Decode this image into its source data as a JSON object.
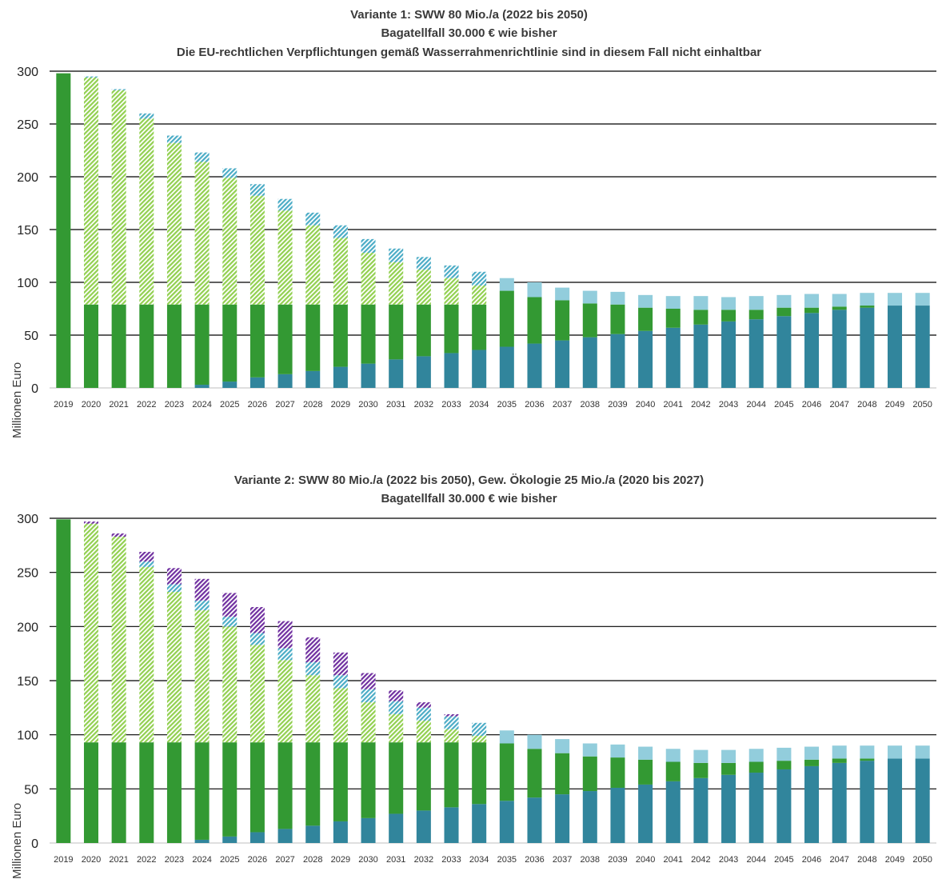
{
  "colors": {
    "basis": "#339933",
    "sww_hatch": "#92d050",
    "teal": "#31859c",
    "light_blue": "#92cddc",
    "light_blue_hatch": "#4bacc6",
    "purple_hatch": "#7030a0"
  },
  "chart_data": [
    {
      "type": "bar",
      "stacked": true,
      "title_lines": [
        "Variante 1: SWW  80 Mio./a (2022 bis 2050)",
        "Bagatellfall 30.000 € wie bisher",
        "Die EU-rechtlichen Verpflichtungen gemäß Wasserrahmenrichtlinie sind in diesem Fall nicht einhaltbar"
      ],
      "ylabel": "Millionen Euro",
      "xlabel": "",
      "ylim": [
        0,
        300
      ],
      "yticks": [
        0,
        50,
        100,
        150,
        200,
        250,
        300
      ],
      "grid": true,
      "categories": [
        "2019",
        "2020",
        "2021",
        "2022",
        "2023",
        "2024",
        "2025",
        "2026",
        "2027",
        "2028",
        "2029",
        "2030",
        "2031",
        "2032",
        "2033",
        "2034",
        "2035",
        "2036",
        "2037",
        "2038",
        "2039",
        "2040",
        "2041",
        "2042",
        "2043",
        "2044",
        "2045",
        "2046",
        "2047",
        "2048",
        "2049",
        "2050"
      ],
      "series": [
        {
          "color_key": "teal",
          "pattern": "solid",
          "values": [
            0,
            0,
            0,
            0,
            0,
            3,
            6,
            10,
            13,
            16,
            20,
            23,
            27,
            30,
            33,
            36,
            39,
            42,
            45,
            48,
            51,
            54,
            57,
            60,
            63,
            65,
            68,
            71,
            74,
            76,
            78,
            78
          ]
        },
        {
          "color_key": "basis",
          "pattern": "solid",
          "values": [
            298,
            79,
            79,
            79,
            79,
            76,
            73,
            69,
            66,
            63,
            59,
            56,
            52,
            49,
            46,
            43,
            53,
            44,
            38,
            32,
            28,
            22,
            18,
            14,
            11,
            9,
            8,
            5,
            3,
            2,
            0,
            0
          ]
        },
        {
          "color_key": "sww_hatch",
          "pattern": "hatch",
          "values": [
            0,
            215,
            203,
            176,
            153,
            135,
            120,
            103,
            89,
            75,
            63,
            49,
            40,
            33,
            25,
            18,
            0,
            0,
            0,
            0,
            0,
            0,
            0,
            0,
            0,
            0,
            0,
            0,
            0,
            0,
            0,
            0
          ]
        },
        {
          "color_key": "light_blue",
          "pattern": "solid",
          "values": [
            0,
            0,
            0,
            0,
            0,
            0,
            0,
            0,
            0,
            0,
            0,
            0,
            0,
            0,
            0,
            0,
            12,
            14,
            12,
            12,
            12,
            12,
            12,
            13,
            12,
            13,
            12,
            13,
            12,
            12,
            12,
            12
          ]
        },
        {
          "color_key": "light_blue_hatch",
          "pattern": "hatch",
          "values": [
            0,
            1,
            1,
            5,
            7,
            9,
            9,
            11,
            11,
            12,
            12,
            13,
            13,
            12,
            12,
            13,
            0,
            0,
            0,
            0,
            0,
            0,
            0,
            0,
            0,
            0,
            0,
            0,
            0,
            0,
            0,
            0
          ]
        }
      ]
    },
    {
      "type": "bar",
      "stacked": true,
      "title_lines": [
        "Variante 2: SWW 80 Mio./a (2022 bis 2050), Gew. Ökologie 25 Mio./a (2020 bis 2027)",
        "Bagatellfall 30.000 € wie bisher"
      ],
      "ylabel": "Millionen Euro",
      "xlabel": "",
      "ylim": [
        0,
        300
      ],
      "yticks": [
        0,
        50,
        100,
        150,
        200,
        250,
        300
      ],
      "grid": true,
      "categories": [
        "2019",
        "2020",
        "2021",
        "2022",
        "2023",
        "2024",
        "2025",
        "2026",
        "2027",
        "2028",
        "2029",
        "2030",
        "2031",
        "2032",
        "2033",
        "2034",
        "2035",
        "2036",
        "2037",
        "2038",
        "2039",
        "2040",
        "2041",
        "2042",
        "2043",
        "2044",
        "2045",
        "2046",
        "2047",
        "2048",
        "2049",
        "2050"
      ],
      "series": [
        {
          "color_key": "teal",
          "pattern": "solid",
          "values": [
            0,
            0,
            0,
            0,
            0,
            3,
            6,
            10,
            13,
            16,
            20,
            23,
            27,
            30,
            33,
            36,
            39,
            42,
            45,
            48,
            51,
            54,
            57,
            60,
            63,
            65,
            68,
            71,
            74,
            76,
            78,
            78
          ]
        },
        {
          "color_key": "basis",
          "pattern": "solid",
          "values": [
            299,
            93,
            93,
            93,
            93,
            90,
            87,
            83,
            80,
            77,
            73,
            70,
            66,
            63,
            60,
            57,
            53,
            45,
            38,
            32,
            28,
            23,
            18,
            14,
            11,
            10,
            8,
            6,
            4,
            2,
            0,
            0
          ]
        },
        {
          "color_key": "sww_hatch",
          "pattern": "hatch",
          "values": [
            0,
            202,
            190,
            162,
            139,
            122,
            107,
            90,
            76,
            62,
            50,
            37,
            26,
            20,
            12,
            6,
            0,
            0,
            0,
            0,
            0,
            0,
            0,
            0,
            0,
            0,
            0,
            0,
            0,
            0,
            0,
            0
          ]
        },
        {
          "color_key": "light_blue",
          "pattern": "solid",
          "values": [
            0,
            0,
            0,
            0,
            0,
            0,
            0,
            0,
            0,
            0,
            0,
            0,
            0,
            0,
            0,
            0,
            12,
            13,
            13,
            12,
            12,
            12,
            12,
            12,
            12,
            12,
            12,
            12,
            12,
            12,
            12,
            12
          ]
        },
        {
          "color_key": "light_blue_hatch",
          "pattern": "hatch",
          "values": [
            0,
            0,
            0,
            5,
            7,
            9,
            9,
            11,
            11,
            12,
            12,
            12,
            12,
            12,
            12,
            12,
            0,
            0,
            0,
            0,
            0,
            0,
            0,
            0,
            0,
            0,
            0,
            0,
            0,
            0,
            0,
            0
          ]
        },
        {
          "color_key": "purple_hatch",
          "pattern": "hatch",
          "values": [
            0,
            2,
            3,
            9,
            15,
            20,
            22,
            24,
            25,
            23,
            21,
            15,
            10,
            5,
            2,
            0,
            0,
            0,
            0,
            0,
            0,
            0,
            0,
            0,
            0,
            0,
            0,
            0,
            0,
            0,
            0,
            0
          ]
        }
      ]
    }
  ]
}
